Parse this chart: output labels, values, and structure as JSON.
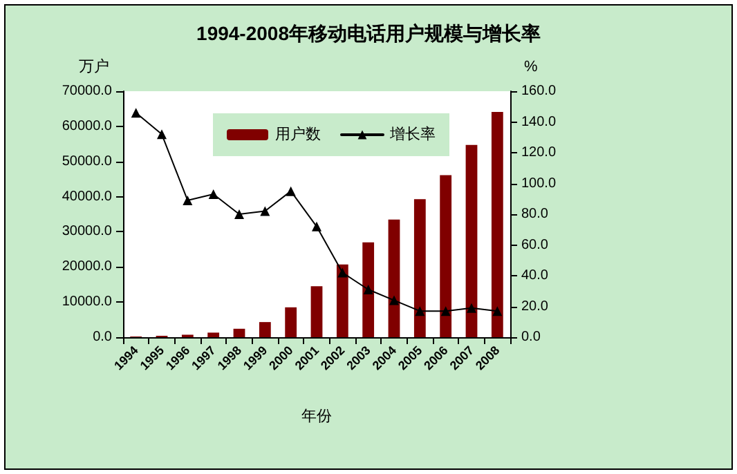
{
  "chart_data": {
    "type": "bar",
    "title": "1994-2008年移动电话用户规模与增长率",
    "xlabel": "年份",
    "ylabel": "万户",
    "y2label": "%",
    "categories": [
      "1994",
      "1995",
      "1996",
      "1997",
      "1998",
      "1999",
      "2000",
      "2001",
      "2002",
      "2003",
      "2004",
      "2005",
      "2006",
      "2007",
      "2008"
    ],
    "series": [
      {
        "name": "用户数",
        "color": "#800000",
        "values": [
          200,
          400,
          700,
          1300,
          2400,
          4300,
          8500,
          14500,
          20700,
          27000,
          33500,
          39300,
          46100,
          54700,
          64100
        ]
      },
      {
        "name": "增长率",
        "type": "line",
        "axis": "y2",
        "color": "#000000",
        "values": [
          146,
          132,
          89,
          93,
          80,
          82,
          95,
          72,
          42,
          31,
          24,
          17,
          17,
          19,
          17
        ]
      }
    ],
    "ylim": [
      0,
      70000
    ],
    "yticks": [
      {
        "value": 0,
        "label": "0.0"
      },
      {
        "value": 10000,
        "label": "10000.0"
      },
      {
        "value": 20000,
        "label": "20000.0"
      },
      {
        "value": 30000,
        "label": "30000.0"
      },
      {
        "value": 40000,
        "label": "40000.0"
      },
      {
        "value": 50000,
        "label": "50000.0"
      },
      {
        "value": 60000,
        "label": "60000.0"
      },
      {
        "value": 70000,
        "label": "70000.0"
      }
    ],
    "y2lim": [
      0,
      160
    ],
    "y2ticks": [
      {
        "value": 0,
        "label": "0.0"
      },
      {
        "value": 20,
        "label": "20.0"
      },
      {
        "value": 40,
        "label": "40.0"
      },
      {
        "value": 60,
        "label": "60.0"
      },
      {
        "value": 80,
        "label": "80.0"
      },
      {
        "value": 100,
        "label": "100.0"
      },
      {
        "value": 120,
        "label": "120.0"
      },
      {
        "value": 140,
        "label": "140.0"
      },
      {
        "value": 160,
        "label": "160.0"
      }
    ],
    "grid": false,
    "legend": "top",
    "marker": "triangle",
    "line_style": "solid"
  }
}
